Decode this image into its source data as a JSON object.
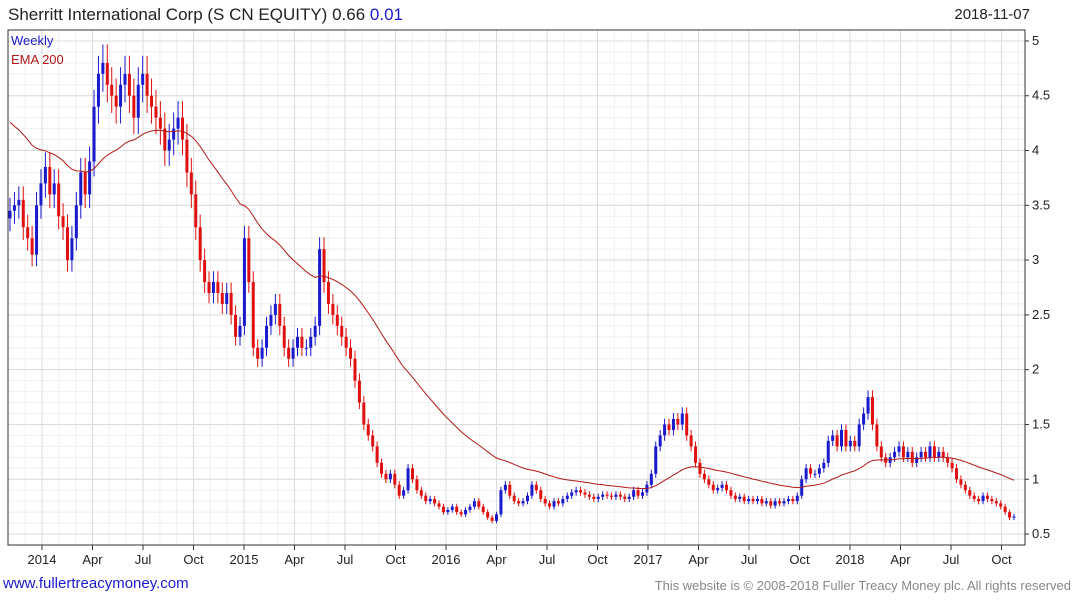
{
  "header": {
    "name": "Sherritt International Corp (S CN EQUITY)",
    "price": "0.66",
    "change": "0.01",
    "date": "2018-11-07"
  },
  "footer": {
    "link": "www.fullertreacymoney.com",
    "copyright": "This website is © 2008-2018 Fuller Treacy Money plc. All rights reserved"
  },
  "colors": {
    "up": "#1a1acd",
    "down": "#e01010",
    "ema": "#b01818",
    "grid": "#dcdcdc",
    "axis": "#333333"
  },
  "chart_data": {
    "type": "candlestick",
    "interval_label": "Weekly",
    "ema_label": "EMA 200",
    "x_ticks": [
      "2014",
      "Apr",
      "Jul",
      "Oct",
      "2015",
      "Apr",
      "Jul",
      "Oct",
      "2016",
      "Apr",
      "Jul",
      "Oct",
      "2017",
      "Apr",
      "Jul",
      "Oct",
      "2018",
      "Apr",
      "Jul",
      "Oct"
    ],
    "y_ticks": [
      0.5,
      1,
      1.5,
      2,
      2.5,
      3,
      3.5,
      4,
      4.5,
      5
    ],
    "y_tick_labels": [
      "0.5",
      "1",
      "1.5",
      "2",
      "2.5",
      "3",
      "3.5",
      "4",
      "4.5",
      "5"
    ],
    "ylim": [
      0.4,
      5.1
    ],
    "weekly_close": [
      3.45,
      3.5,
      3.55,
      3.3,
      3.2,
      3.05,
      3.5,
      3.7,
      3.85,
      3.6,
      3.7,
      3.4,
      3.3,
      3.0,
      3.2,
      3.5,
      3.8,
      3.6,
      3.9,
      4.4,
      4.7,
      4.8,
      4.6,
      4.5,
      4.4,
      4.6,
      4.7,
      4.5,
      4.3,
      4.6,
      4.7,
      4.5,
      4.4,
      4.3,
      4.2,
      4.0,
      4.1,
      4.2,
      4.3,
      4.1,
      3.8,
      3.6,
      3.3,
      3.0,
      2.8,
      2.7,
      2.8,
      2.7,
      2.6,
      2.7,
      2.5,
      2.3,
      2.4,
      3.2,
      2.8,
      2.2,
      2.1,
      2.2,
      2.4,
      2.5,
      2.6,
      2.4,
      2.2,
      2.1,
      2.2,
      2.3,
      2.2,
      2.2,
      2.3,
      2.4,
      3.1,
      2.8,
      2.6,
      2.5,
      2.4,
      2.3,
      2.2,
      2.1,
      1.9,
      1.7,
      1.5,
      1.4,
      1.3,
      1.15,
      1.05,
      1.0,
      1.05,
      0.95,
      0.85,
      0.9,
      1.1,
      1.0,
      0.9,
      0.85,
      0.8,
      0.82,
      0.78,
      0.75,
      0.7,
      0.72,
      0.75,
      0.7,
      0.68,
      0.72,
      0.75,
      0.8,
      0.75,
      0.7,
      0.65,
      0.62,
      0.68,
      0.9,
      0.95,
      0.85,
      0.8,
      0.78,
      0.8,
      0.85,
      0.95,
      0.9,
      0.82,
      0.78,
      0.75,
      0.8,
      0.78,
      0.82,
      0.85,
      0.88,
      0.9,
      0.88,
      0.86,
      0.84,
      0.82,
      0.84,
      0.86,
      0.85,
      0.84,
      0.86,
      0.84,
      0.82,
      0.84,
      0.9,
      0.85,
      0.88,
      0.95,
      1.05,
      1.3,
      1.4,
      1.5,
      1.45,
      1.55,
      1.5,
      1.6,
      1.4,
      1.3,
      1.15,
      1.05,
      1.0,
      0.95,
      0.9,
      0.92,
      0.95,
      0.9,
      0.85,
      0.82,
      0.84,
      0.8,
      0.82,
      0.8,
      0.82,
      0.78,
      0.8,
      0.76,
      0.8,
      0.78,
      0.8,
      0.82,
      0.8,
      0.85,
      1.0,
      1.1,
      1.05,
      1.05,
      1.1,
      1.15,
      1.35,
      1.4,
      1.3,
      1.45,
      1.3,
      1.35,
      1.3,
      1.5,
      1.6,
      1.75,
      1.5,
      1.3,
      1.2,
      1.15,
      1.2,
      1.25,
      1.3,
      1.2,
      1.25,
      1.15,
      1.2,
      1.25,
      1.2,
      1.3,
      1.2,
      1.25,
      1.2,
      1.15,
      1.1,
      1.0,
      0.95,
      0.9,
      0.85,
      0.82,
      0.8,
      0.85,
      0.82,
      0.8,
      0.78,
      0.75,
      0.7,
      0.65,
      0.66
    ]
  }
}
